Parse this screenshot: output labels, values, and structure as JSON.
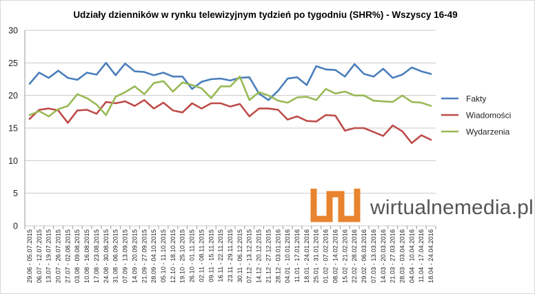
{
  "chart_data": {
    "type": "line",
    "title": "Udziały dzienników w rynku telewizyjnym tydzień po tygodniu (SHR%) - Wszyscy 16-49",
    "xlabel": "",
    "ylabel": "",
    "ylim": [
      0,
      30
    ],
    "yticks": [
      "0",
      "5",
      "10",
      "15",
      "20",
      "25",
      "30"
    ],
    "grid": true,
    "legend_position": "right",
    "categories": [
      "29.06 - 05.07.2015",
      "06.07 - 12.07.2015",
      "13.07 - 19.07.2015",
      "20.07 - 26.07.2015",
      "27.07 - 02.08.2015",
      "03.08 - 09.08.2015",
      "10.08 - 16.08.2015",
      "17.08 - 23.08.2015",
      "24.08 - 30.08.2015",
      "31.08 - 06.09.2015",
      "07.09 - 13.09.2015",
      "14.09 - 20.09.2015",
      "21.09 - 27.09.2015",
      "28.09 - 04.10.2015",
      "05.10 - 11.10.2015",
      "12.10 - 18.10.2015",
      "19.10 - 25.10.2015",
      "26.10 - 01.11.2015",
      "02.11 - 08.11.2015",
      "09.11 - 15.11.2015",
      "16.11 - 22.11.2015",
      "23.11 - 29.11.2015",
      "30.11 - 06.12.2015",
      "07.12 - 13.12.2015",
      "14.12 - 20.12.2015",
      "21.12 - 27.12.2015",
      "28.12 - 03.01.2016",
      "04.01 - 10.01.2016",
      "11.01 - 17.01.2016",
      "18.01 - 24.01.2016",
      "25.01 - 31.01.2016",
      "01.02 - 07.02.2016",
      "08.02 - 14.02.2016",
      "15.02 - 21.02.2016",
      "22.02 - 28.02.2016",
      "29.02 - 06.03.2016",
      "07.03 - 13.03.2016",
      "14.03 - 20.03.2016",
      "21.03 - 27.03.2016",
      "28.03 - 03.04.2016",
      "04.04 - 10.04.2016",
      "11.04 - 17.04.2016",
      "18.04 - 24.04.2016"
    ],
    "series": [
      {
        "name": "Fakty",
        "color": "#4a7ebb",
        "values": [
          21.8,
          23.5,
          22.7,
          23.8,
          22.7,
          22.4,
          23.5,
          23.2,
          25.0,
          23.1,
          24.9,
          23.7,
          23.6,
          23.1,
          23.5,
          22.9,
          22.9,
          21.0,
          22.1,
          22.5,
          22.6,
          22.3,
          22.7,
          22.8,
          20.3,
          19.3,
          20.7,
          22.6,
          22.8,
          21.6,
          24.5,
          24.0,
          23.9,
          22.9,
          24.8,
          23.3,
          22.9,
          24.1,
          22.7,
          23.2,
          24.3,
          23.7,
          23.3
        ]
      },
      {
        "name": "Wiadomości",
        "color": "#be4b48",
        "values": [
          16.4,
          17.8,
          18.0,
          17.7,
          15.8,
          17.7,
          17.8,
          17.2,
          19.0,
          18.8,
          19.1,
          18.4,
          19.3,
          18.0,
          18.9,
          17.7,
          17.4,
          18.8,
          18.0,
          18.8,
          18.8,
          18.3,
          18.7,
          16.8,
          18.0,
          18.0,
          17.8,
          16.3,
          16.8,
          16.1,
          16.0,
          17.0,
          16.9,
          14.6,
          15.0,
          15.0,
          14.4,
          13.8,
          15.4,
          14.5,
          12.7,
          13.9,
          13.2
        ]
      },
      {
        "name": "Wydarzenia",
        "color": "#98b954",
        "values": [
          17.0,
          17.6,
          16.8,
          17.9,
          18.4,
          20.2,
          19.6,
          18.6,
          17.0,
          19.8,
          20.5,
          21.4,
          20.2,
          21.9,
          22.2,
          20.6,
          22.0,
          21.6,
          21.1,
          19.6,
          21.4,
          21.4,
          22.9,
          19.3,
          20.5,
          20.0,
          19.2,
          18.9,
          19.7,
          19.8,
          19.3,
          21.0,
          20.3,
          20.6,
          20.0,
          20.0,
          19.2,
          19.1,
          19.0,
          20.0,
          19.0,
          18.9,
          18.4
        ]
      }
    ]
  },
  "watermark": {
    "text": "wirtualnemedia.pl",
    "logo_color": "#e8832e",
    "text_color": "#555555"
  }
}
